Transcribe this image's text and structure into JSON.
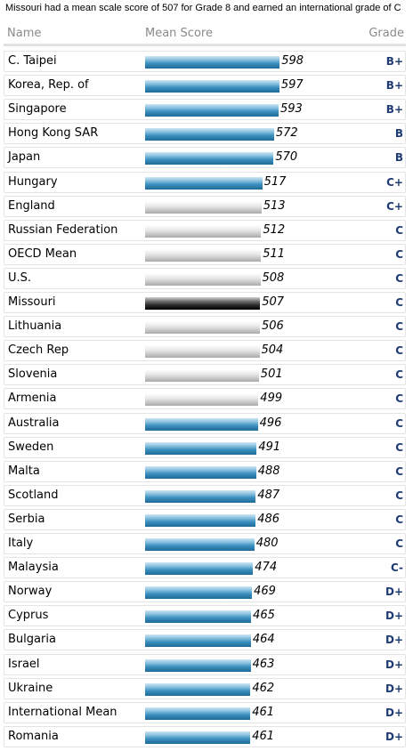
{
  "caption": "Missouri had a mean scale score of 507 for Grade 8 and earned an international grade of C",
  "headers": {
    "name": "Name",
    "score": "Mean Score",
    "grade": "Grade"
  },
  "colors": {
    "blue": "#3b8fbe",
    "gray": "#c4c4c4",
    "black": "#2a2a2a",
    "grade": "#1f3b73"
  },
  "chart_data": {
    "type": "bar",
    "orientation": "horizontal",
    "categories": [
      "C. Taipei",
      "Korea, Rep. of",
      "Singapore",
      "Hong Kong SAR",
      "Japan",
      "Hungary",
      "England",
      "Russian Federation",
      "OECD Mean",
      "U.S.",
      "Missouri",
      "Lithuania",
      "Czech Rep",
      "Slovenia",
      "Armenia",
      "Australia",
      "Sweden",
      "Malta",
      "Scotland",
      "Serbia",
      "Italy",
      "Malaysia",
      "Norway",
      "Cyprus",
      "Bulgaria",
      "Israel",
      "Ukraine",
      "International Mean",
      "Romania"
    ],
    "values": [
      598,
      597,
      593,
      572,
      570,
      517,
      513,
      512,
      511,
      508,
      507,
      506,
      504,
      501,
      499,
      496,
      491,
      488,
      487,
      486,
      480,
      474,
      469,
      465,
      464,
      463,
      462,
      461,
      461
    ],
    "grades": [
      "B+",
      "B+",
      "B+",
      "B",
      "B",
      "C+",
      "C+",
      "C",
      "C",
      "C",
      "C",
      "C",
      "C",
      "C",
      "C",
      "C",
      "C",
      "C",
      "C",
      "C",
      "C",
      "C-",
      "D+",
      "D+",
      "D+",
      "D+",
      "D+",
      "D+",
      "D+"
    ],
    "bar_colors": [
      "blue",
      "blue",
      "blue",
      "blue",
      "blue",
      "blue",
      "gray",
      "gray",
      "gray",
      "gray",
      "black",
      "gray",
      "gray",
      "gray",
      "gray",
      "blue",
      "blue",
      "blue",
      "blue",
      "blue",
      "blue",
      "blue",
      "blue",
      "blue",
      "blue",
      "blue",
      "blue",
      "blue",
      "blue"
    ]
  }
}
